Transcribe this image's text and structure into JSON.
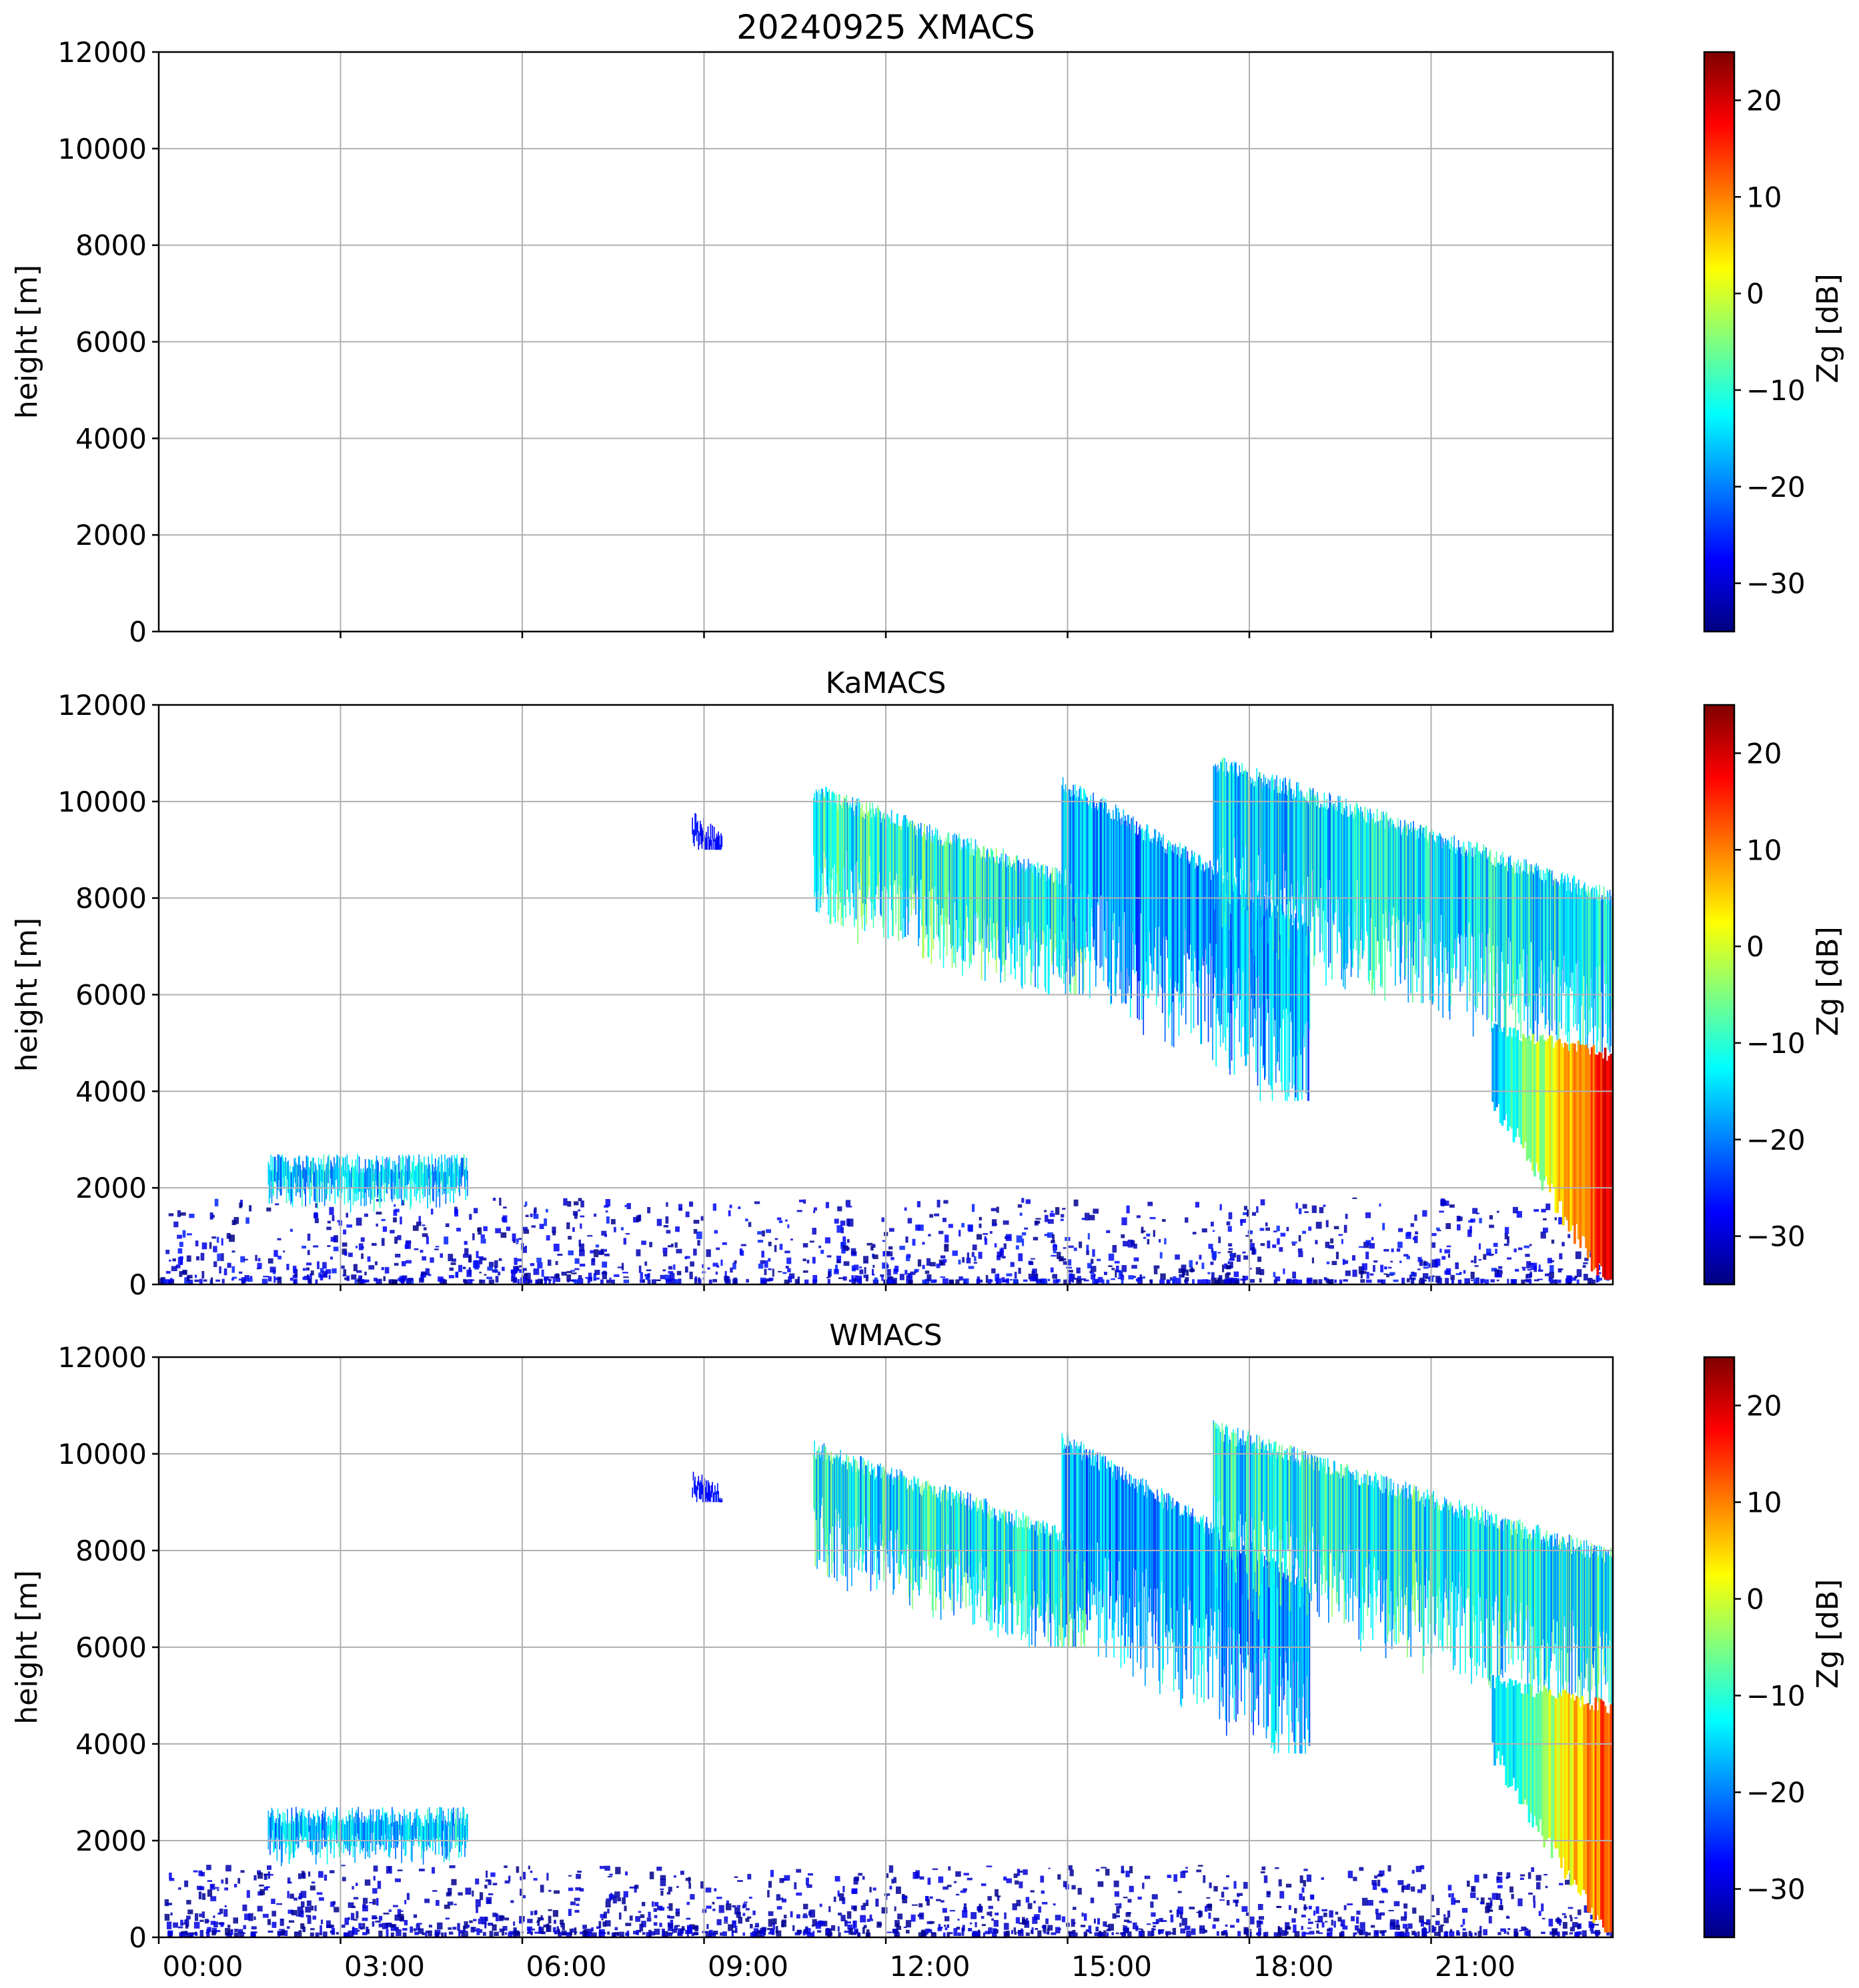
{
  "figure": {
    "title": "20240925 XMACS"
  },
  "colors": {
    "grid": "#b0b0b0",
    "axes": "#000000",
    "colormap": "jet",
    "jet_stops": [
      "#00007f",
      "#0000ff",
      "#007fff",
      "#00ffff",
      "#7fff7f",
      "#ffff00",
      "#ff7f00",
      "#ff0000",
      "#7f0000"
    ]
  },
  "chart_data": [
    {
      "type": "heatmap",
      "title": "",
      "ylabel": "height [m]",
      "xlabel": "",
      "ylim": [
        0,
        12000
      ],
      "yticks": [
        "0",
        "2000",
        "4000",
        "6000",
        "8000",
        "10000",
        "12000"
      ],
      "xlim_hours": [
        0,
        24
      ],
      "xticks_hours": [
        3,
        6,
        9,
        12,
        15,
        18,
        21
      ],
      "xticklabels": [],
      "grid": true,
      "colorbar": {
        "label": "Zg [dB]",
        "range": [
          -35,
          25
        ],
        "ticks": [
          "−30",
          "−20",
          "−10",
          "0",
          "10",
          "20"
        ]
      },
      "echoes": []
    },
    {
      "type": "heatmap",
      "title": "KaMACS",
      "ylabel": "height [m]",
      "xlabel": "",
      "ylim": [
        0,
        12000
      ],
      "yticks": [
        "0",
        "2000",
        "4000",
        "6000",
        "8000",
        "10000",
        "12000"
      ],
      "xlim_hours": [
        0,
        24
      ],
      "xticks_hours": [
        3,
        6,
        9,
        12,
        15,
        18,
        21
      ],
      "xticklabels": [],
      "grid": true,
      "colorbar": {
        "label": "Zg [dB]",
        "range": [
          -35,
          25
        ],
        "ticks": [
          "−30",
          "−20",
          "−10",
          "0",
          "10",
          "20"
        ]
      },
      "echoes": [
        {
          "name": "boundary layer clutter",
          "t": [
            0,
            24
          ],
          "z": [
            100,
            1800
          ],
          "zg": [
            -35,
            -25
          ]
        },
        {
          "name": "cloud 03:00",
          "t": [
            1.8,
            5.1
          ],
          "z": [
            1300,
            2700
          ],
          "zg": [
            -30,
            -8
          ]
        },
        {
          "name": "cloud 09:00",
          "t": [
            8.8,
            9.3
          ],
          "z": [
            9000,
            9800
          ],
          "zg": [
            -30,
            -25
          ]
        },
        {
          "name": "cirrus 11-15",
          "t": [
            10.8,
            15.3
          ],
          "z": [
            6000,
            10400
          ],
          "zg": [
            -30,
            -2
          ]
        },
        {
          "name": "cirrus 15-19",
          "t": [
            14.9,
            19.0
          ],
          "z": [
            3800,
            10600
          ],
          "zg": [
            -32,
            -10
          ]
        },
        {
          "name": "cirrus 18-24",
          "t": [
            17.4,
            24
          ],
          "z": [
            4800,
            11000
          ],
          "zg": [
            -30,
            -5
          ]
        },
        {
          "name": "precipitation 22-24",
          "t": [
            21.8,
            24
          ],
          "z": [
            100,
            5200
          ],
          "zg": [
            -20,
            20
          ]
        }
      ]
    },
    {
      "type": "heatmap",
      "title": "WMACS",
      "ylabel": "height [m]",
      "xlabel": "",
      "ylim": [
        0,
        12000
      ],
      "yticks": [
        "0",
        "2000",
        "4000",
        "6000",
        "8000",
        "10000",
        "12000"
      ],
      "xlim_hours": [
        0,
        24
      ],
      "xticks_hours": [
        0,
        3,
        6,
        9,
        12,
        15,
        18,
        21
      ],
      "xticklabels": [
        "00:00",
        "03:00",
        "06:00",
        "09:00",
        "12:00",
        "15:00",
        "18:00",
        "21:00"
      ],
      "grid": true,
      "colorbar": {
        "label": "Zg [dB]",
        "range": [
          -35,
          25
        ],
        "ticks": [
          "−30",
          "−20",
          "−10",
          "0",
          "10",
          "20"
        ]
      },
      "echoes": [
        {
          "name": "boundary layer clutter",
          "t": [
            0,
            24
          ],
          "z": [
            100,
            1500
          ],
          "zg": [
            -35,
            -28
          ]
        },
        {
          "name": "cloud 03:00",
          "t": [
            1.8,
            5.1
          ],
          "z": [
            1300,
            2700
          ],
          "zg": [
            -30,
            -8
          ]
        },
        {
          "name": "cloud 09:00",
          "t": [
            8.8,
            9.3
          ],
          "z": [
            9000,
            9700
          ],
          "zg": [
            -30,
            -25
          ]
        },
        {
          "name": "cirrus 11-15",
          "t": [
            10.8,
            15.3
          ],
          "z": [
            6000,
            10300
          ],
          "zg": [
            -30,
            -3
          ]
        },
        {
          "name": "cirrus 15-19",
          "t": [
            14.9,
            19.0
          ],
          "z": [
            3800,
            10500
          ],
          "zg": [
            -32,
            -10
          ]
        },
        {
          "name": "cirrus 18-24",
          "t": [
            17.4,
            24
          ],
          "z": [
            4800,
            10700
          ],
          "zg": [
            -30,
            -3
          ]
        },
        {
          "name": "precipitation 22-24",
          "t": [
            21.8,
            24
          ],
          "z": [
            100,
            5200
          ],
          "zg": [
            -20,
            15
          ]
        }
      ]
    }
  ]
}
